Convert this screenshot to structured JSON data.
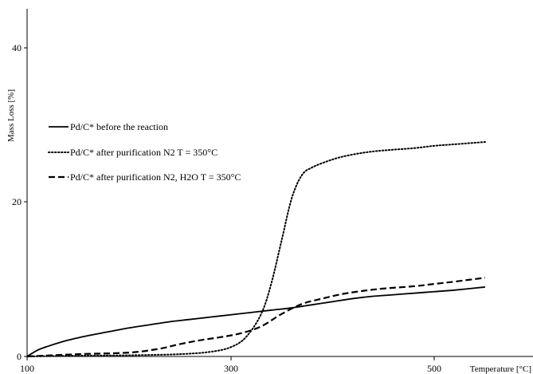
{
  "chart_data": {
    "type": "line",
    "xlabel": "Temperature  [°C]",
    "ylabel": "Mass Loss [%]",
    "xlim": [
      100,
      650
    ],
    "ylim": [
      0,
      45
    ],
    "x_ticks": [
      "100",
      "300",
      "500"
    ],
    "y_ticks": [
      "0",
      "20",
      "40"
    ],
    "grid": false,
    "legend_position": "upper-left",
    "series": [
      {
        "name": "Pd/C* before the reaction",
        "style": "solid",
        "x": [
          100,
          110,
          120,
          140,
          160,
          180,
          200,
          220,
          240,
          260,
          280,
          300,
          320,
          340,
          360,
          380,
          400,
          420,
          440,
          460,
          480,
          500,
          520,
          550
        ],
        "y": [
          0.0,
          0.8,
          1.3,
          2.1,
          2.7,
          3.2,
          3.7,
          4.1,
          4.5,
          4.8,
          5.1,
          5.4,
          5.7,
          6.0,
          6.3,
          6.7,
          7.1,
          7.5,
          7.8,
          8.0,
          8.2,
          8.4,
          8.6,
          9.0
        ]
      },
      {
        "name": "Pd/C* after purification N2 T = 350°C",
        "style": "dotted",
        "x": [
          100,
          150,
          200,
          250,
          280,
          300,
          315,
          330,
          340,
          350,
          360,
          370,
          380,
          395,
          410,
          430,
          450,
          480,
          500,
          520,
          550
        ],
        "y": [
          0.0,
          0.1,
          0.15,
          0.3,
          0.6,
          1.2,
          2.5,
          5.5,
          9.5,
          15.0,
          20.5,
          23.5,
          24.5,
          25.3,
          25.9,
          26.4,
          26.7,
          27.0,
          27.3,
          27.5,
          27.8
        ]
      },
      {
        "name": "Pd/C* after purification N2, H2O T = 350°C",
        "style": "dashed",
        "x": [
          100,
          150,
          200,
          230,
          250,
          270,
          290,
          310,
          330,
          350,
          370,
          390,
          410,
          430,
          450,
          480,
          500,
          520,
          550
        ],
        "y": [
          0.0,
          0.3,
          0.5,
          1.0,
          1.6,
          2.1,
          2.5,
          3.0,
          3.9,
          5.5,
          6.8,
          7.5,
          8.1,
          8.5,
          8.8,
          9.1,
          9.4,
          9.7,
          10.2
        ]
      }
    ]
  }
}
